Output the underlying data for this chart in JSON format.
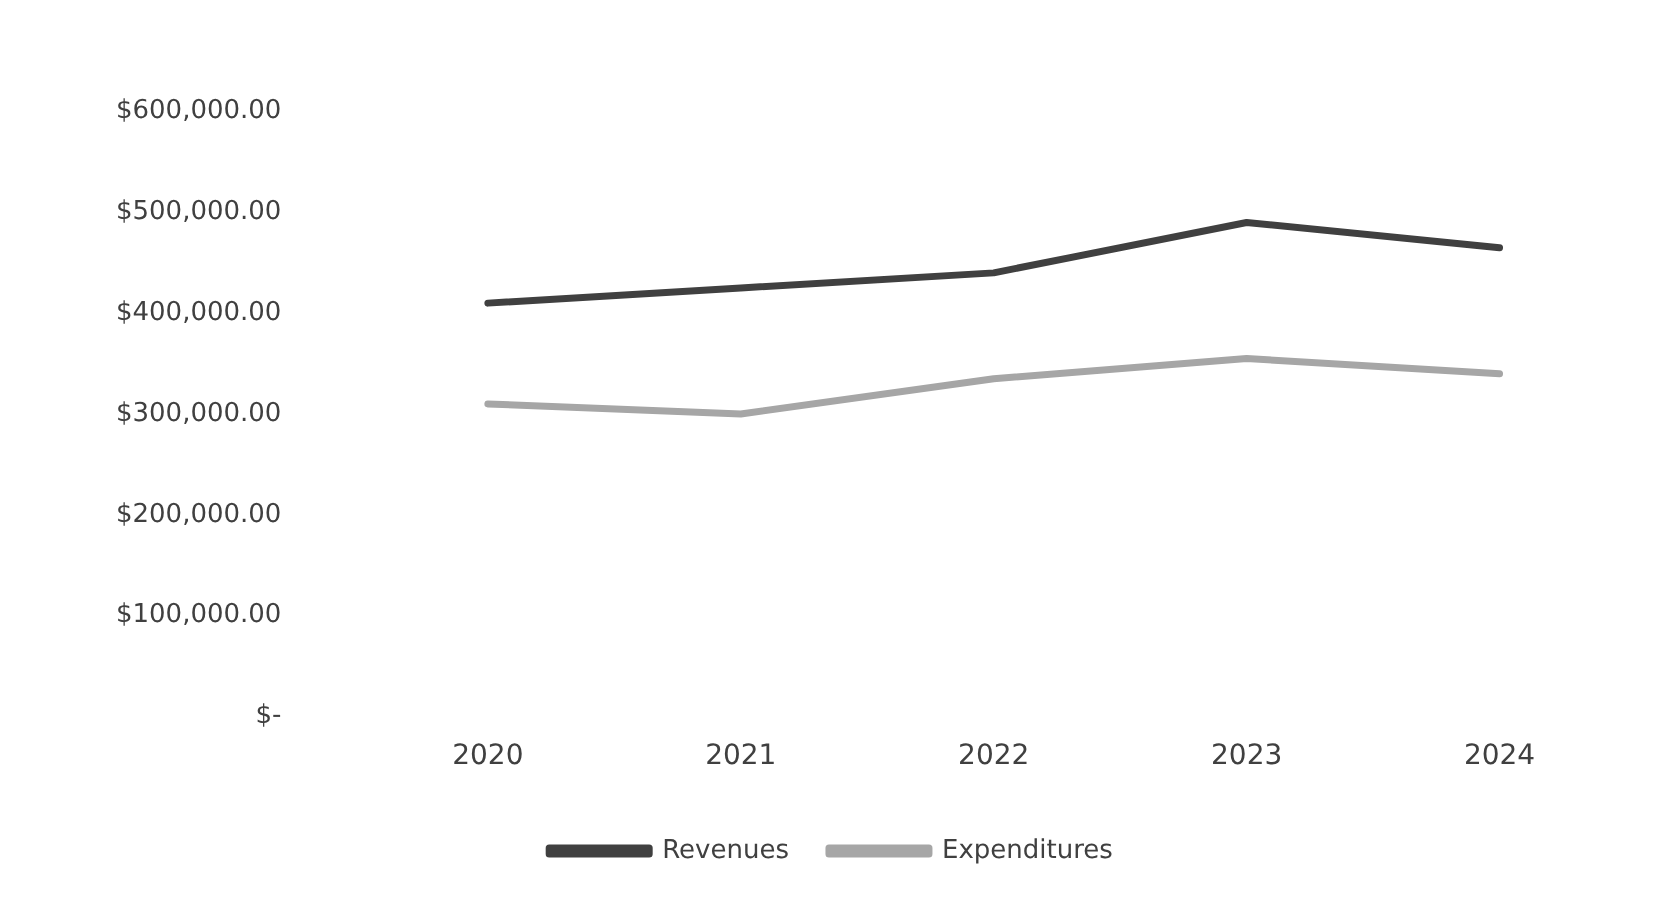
{
  "chart_data": {
    "type": "line",
    "categories": [
      "2020",
      "2021",
      "2022",
      "2023",
      "2024"
    ],
    "series": [
      {
        "name": "Revenues",
        "color": "#404040",
        "values": [
          410000,
          425000,
          440000,
          490000,
          465000
        ]
      },
      {
        "name": "Expenditures",
        "color": "#a6a6a6",
        "values": [
          310000,
          300000,
          335000,
          355000,
          340000
        ]
      }
    ],
    "ylim": [
      0,
      600000
    ],
    "yticks": [
      {
        "value": 0,
        "label": "$-"
      },
      {
        "value": 100000,
        "label": "$100,000.00"
      },
      {
        "value": 200000,
        "label": "$200,000.00"
      },
      {
        "value": 300000,
        "label": "$300,000.00"
      },
      {
        "value": 400000,
        "label": "$400,000.00"
      },
      {
        "value": 500000,
        "label": "$500,000.00"
      },
      {
        "value": 600000,
        "label": "$600,000.00"
      }
    ],
    "grid": false,
    "legend": "bottom",
    "marker": "none",
    "line_style": "solid"
  }
}
